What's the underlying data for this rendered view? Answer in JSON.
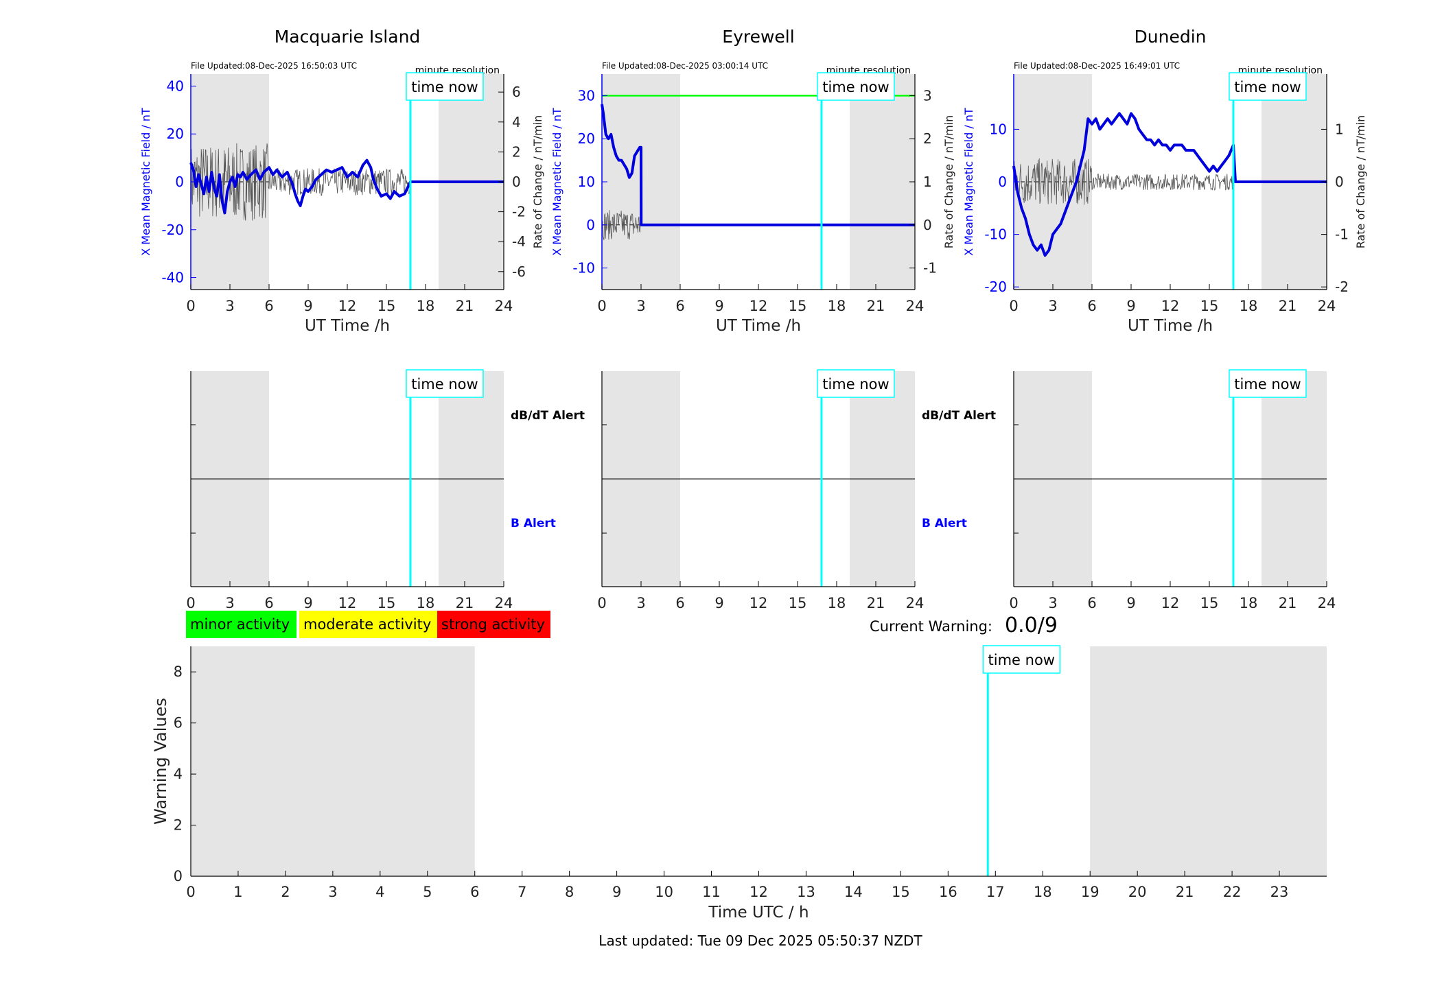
{
  "colors": {
    "shade": "#e5e5e5",
    "field_line": "#0000dd",
    "rate_line": "#555555",
    "time_now": "#00ffff",
    "axis_blue": "#0000ff",
    "green_line": "#00ff00",
    "minor": "#00ff00",
    "moderate": "#ffff00",
    "strong": "#ff0000"
  },
  "common": {
    "file_updated_prefix": "File Updated:",
    "resolution_label": "minute resolution",
    "time_now_label": "time now",
    "x_label": "UT Time /h",
    "y_left_label": "X Mean Magnetic Field / nT",
    "y_right_label": "Rate of Change / nT/min",
    "dbdt_alert_label": "dB/dT Alert",
    "b_alert_label": "B Alert",
    "x_ticks": [
      "0",
      "3",
      "6",
      "9",
      "12",
      "15",
      "18",
      "21",
      "24"
    ],
    "time_now_hour": 16.84,
    "night_shade_hours": [
      [
        0,
        6
      ],
      [
        19,
        24
      ]
    ]
  },
  "legend": {
    "minor": "minor activity",
    "moderate": "moderate activity",
    "strong": "strong activity"
  },
  "current_warning": {
    "label": "Current Warning:",
    "value": "0.0/9"
  },
  "footer": {
    "last_updated": "Last updated: Tue 09 Dec 2025 05:50:37 NZDT"
  },
  "chart_data": [
    {
      "type": "line",
      "title": "Macquarie Island",
      "file_updated": "08-Dec-2025 16:50:03 UTC",
      "xlabel": "UT Time /h",
      "ylabel": "X Mean Magnetic Field / nT",
      "ylabel_right": "Rate of Change / nT/min",
      "xlim": [
        0,
        24
      ],
      "ylim": [
        -45,
        45
      ],
      "ylim_right": [
        -7.2,
        7.2
      ],
      "y_ticks": [
        "-40",
        "-20",
        "0",
        "20",
        "40"
      ],
      "y_ticks_right": [
        "-6",
        "-4",
        "-2",
        "0",
        "2",
        "4",
        "6"
      ],
      "series": [
        {
          "x": [
            0,
            0.2,
            0.4,
            0.6,
            0.8,
            1,
            1.2,
            1.4,
            1.6,
            1.8,
            2,
            2.2,
            2.4,
            2.6,
            2.8,
            3,
            3.2,
            3.4,
            3.6,
            3.8,
            4,
            4.3,
            4.6,
            5,
            5.3,
            5.6,
            6,
            6.3,
            6.6,
            7,
            7.4,
            7.8,
            8,
            8.2,
            8.4,
            8.6,
            8.8,
            9,
            9.3,
            9.6,
            10,
            10.4,
            10.8,
            11.2,
            11.6,
            12,
            12.4,
            12.8,
            13.2,
            13.5,
            13.8,
            14,
            14.3,
            14.6,
            15,
            15.3,
            15.6,
            16,
            16.4,
            16.84,
            17,
            18,
            19,
            20,
            21,
            22,
            23,
            24
          ],
          "y": [
            8,
            5,
            -2,
            3,
            -1,
            -5,
            2,
            -4,
            4,
            -3,
            -6,
            3,
            -8,
            -13,
            -4,
            0,
            2,
            -2,
            3,
            2,
            4,
            1,
            3,
            5,
            1,
            4,
            6,
            3,
            5,
            2,
            4,
            -1,
            -5,
            -8,
            -10,
            -6,
            -3,
            -4,
            -2,
            1,
            3,
            5,
            4,
            5,
            6,
            2,
            4,
            2,
            7,
            9,
            6,
            1,
            -3,
            -6,
            -5,
            -7,
            -4,
            -6,
            -5,
            0,
            0,
            0,
            0,
            0,
            0,
            0,
            0,
            0
          ]
        }
      ]
    },
    {
      "type": "line",
      "title": "Eyrewell",
      "file_updated": "08-Dec-2025 03:00:14 UTC",
      "xlabel": "UT Time /h",
      "ylabel": "X Mean Magnetic Field / nT",
      "ylabel_right": "Rate of Change / nT/min",
      "xlim": [
        0,
        24
      ],
      "ylim": [
        -15,
        35
      ],
      "ylim_right": [
        -1.5,
        3.5
      ],
      "y_ticks": [
        "-10",
        "0",
        "10",
        "20",
        "30"
      ],
      "y_ticks_right": [
        "-1",
        "0",
        "1",
        "2",
        "3"
      ],
      "reference_line": 30,
      "series": [
        {
          "x": [
            0,
            0.1,
            0.3,
            0.5,
            0.7,
            0.9,
            1.1,
            1.3,
            1.5,
            1.7,
            1.9,
            2.1,
            2.3,
            2.5,
            2.7,
            2.9,
            3,
            3.01,
            6,
            12,
            16.84,
            18,
            24
          ],
          "y": [
            28,
            26,
            21,
            20,
            21,
            18,
            16,
            15,
            15,
            14,
            13,
            11,
            12,
            16,
            17,
            18,
            18,
            0,
            0,
            0,
            0,
            0,
            0
          ]
        }
      ]
    },
    {
      "type": "line",
      "title": "Dunedin",
      "file_updated": "08-Dec-2025 16:49:01 UTC",
      "xlabel": "UT Time /h",
      "ylabel": "X Mean Magnetic Field / nT",
      "ylabel_right": "Rate of Change / nT/min",
      "xlim": [
        0,
        24
      ],
      "ylim": [
        -20.5,
        20.5
      ],
      "ylim_right": [
        -2.05,
        2.05
      ],
      "y_ticks": [
        "-20",
        "-10",
        "0",
        "10"
      ],
      "y_ticks_right": [
        "-2",
        "-1",
        "0",
        "1"
      ],
      "series": [
        {
          "x": [
            0,
            0.3,
            0.6,
            0.9,
            1.2,
            1.5,
            1.8,
            2.1,
            2.4,
            2.7,
            3,
            3.3,
            3.6,
            3.9,
            4.2,
            4.5,
            4.8,
            5.1,
            5.4,
            5.7,
            6,
            6.3,
            6.6,
            6.9,
            7.2,
            7.5,
            7.8,
            8.1,
            8.4,
            8.7,
            9,
            9.3,
            9.6,
            9.9,
            10.2,
            10.5,
            10.8,
            11.1,
            11.4,
            11.7,
            12,
            12.3,
            12.6,
            12.9,
            13.2,
            13.5,
            13.8,
            14.1,
            14.4,
            14.7,
            15,
            15.3,
            15.6,
            15.9,
            16.2,
            16.5,
            16.84,
            17,
            18,
            19,
            20,
            21,
            22,
            23,
            24
          ],
          "y": [
            3,
            -2,
            -5,
            -7,
            -10,
            -12,
            -13,
            -12,
            -14,
            -13,
            -10,
            -9,
            -8,
            -6,
            -4,
            -2,
            0,
            3,
            6,
            12,
            11,
            12,
            10,
            11,
            12,
            11,
            12,
            13,
            12,
            11,
            13,
            12,
            10,
            9,
            8,
            8,
            7,
            8,
            7,
            7,
            6,
            7,
            7,
            7,
            6,
            6,
            6,
            5,
            4,
            3,
            2,
            3,
            2,
            3,
            4,
            5,
            7,
            0,
            0,
            0,
            0,
            0,
            0,
            0,
            0
          ]
        }
      ]
    },
    {
      "type": "line",
      "title": "",
      "xlabel": "Time UTC / h",
      "ylabel": "Warning Values",
      "xlim": [
        0,
        24
      ],
      "ylim": [
        0,
        9
      ],
      "x_ticks": [
        "0",
        "1",
        "2",
        "3",
        "4",
        "5",
        "6",
        "7",
        "8",
        "9",
        "10",
        "11",
        "12",
        "13",
        "14",
        "15",
        "16",
        "17",
        "18",
        "19",
        "20",
        "21",
        "22",
        "23"
      ],
      "y_ticks": [
        "0",
        "2",
        "4",
        "6",
        "8"
      ],
      "series": []
    }
  ]
}
